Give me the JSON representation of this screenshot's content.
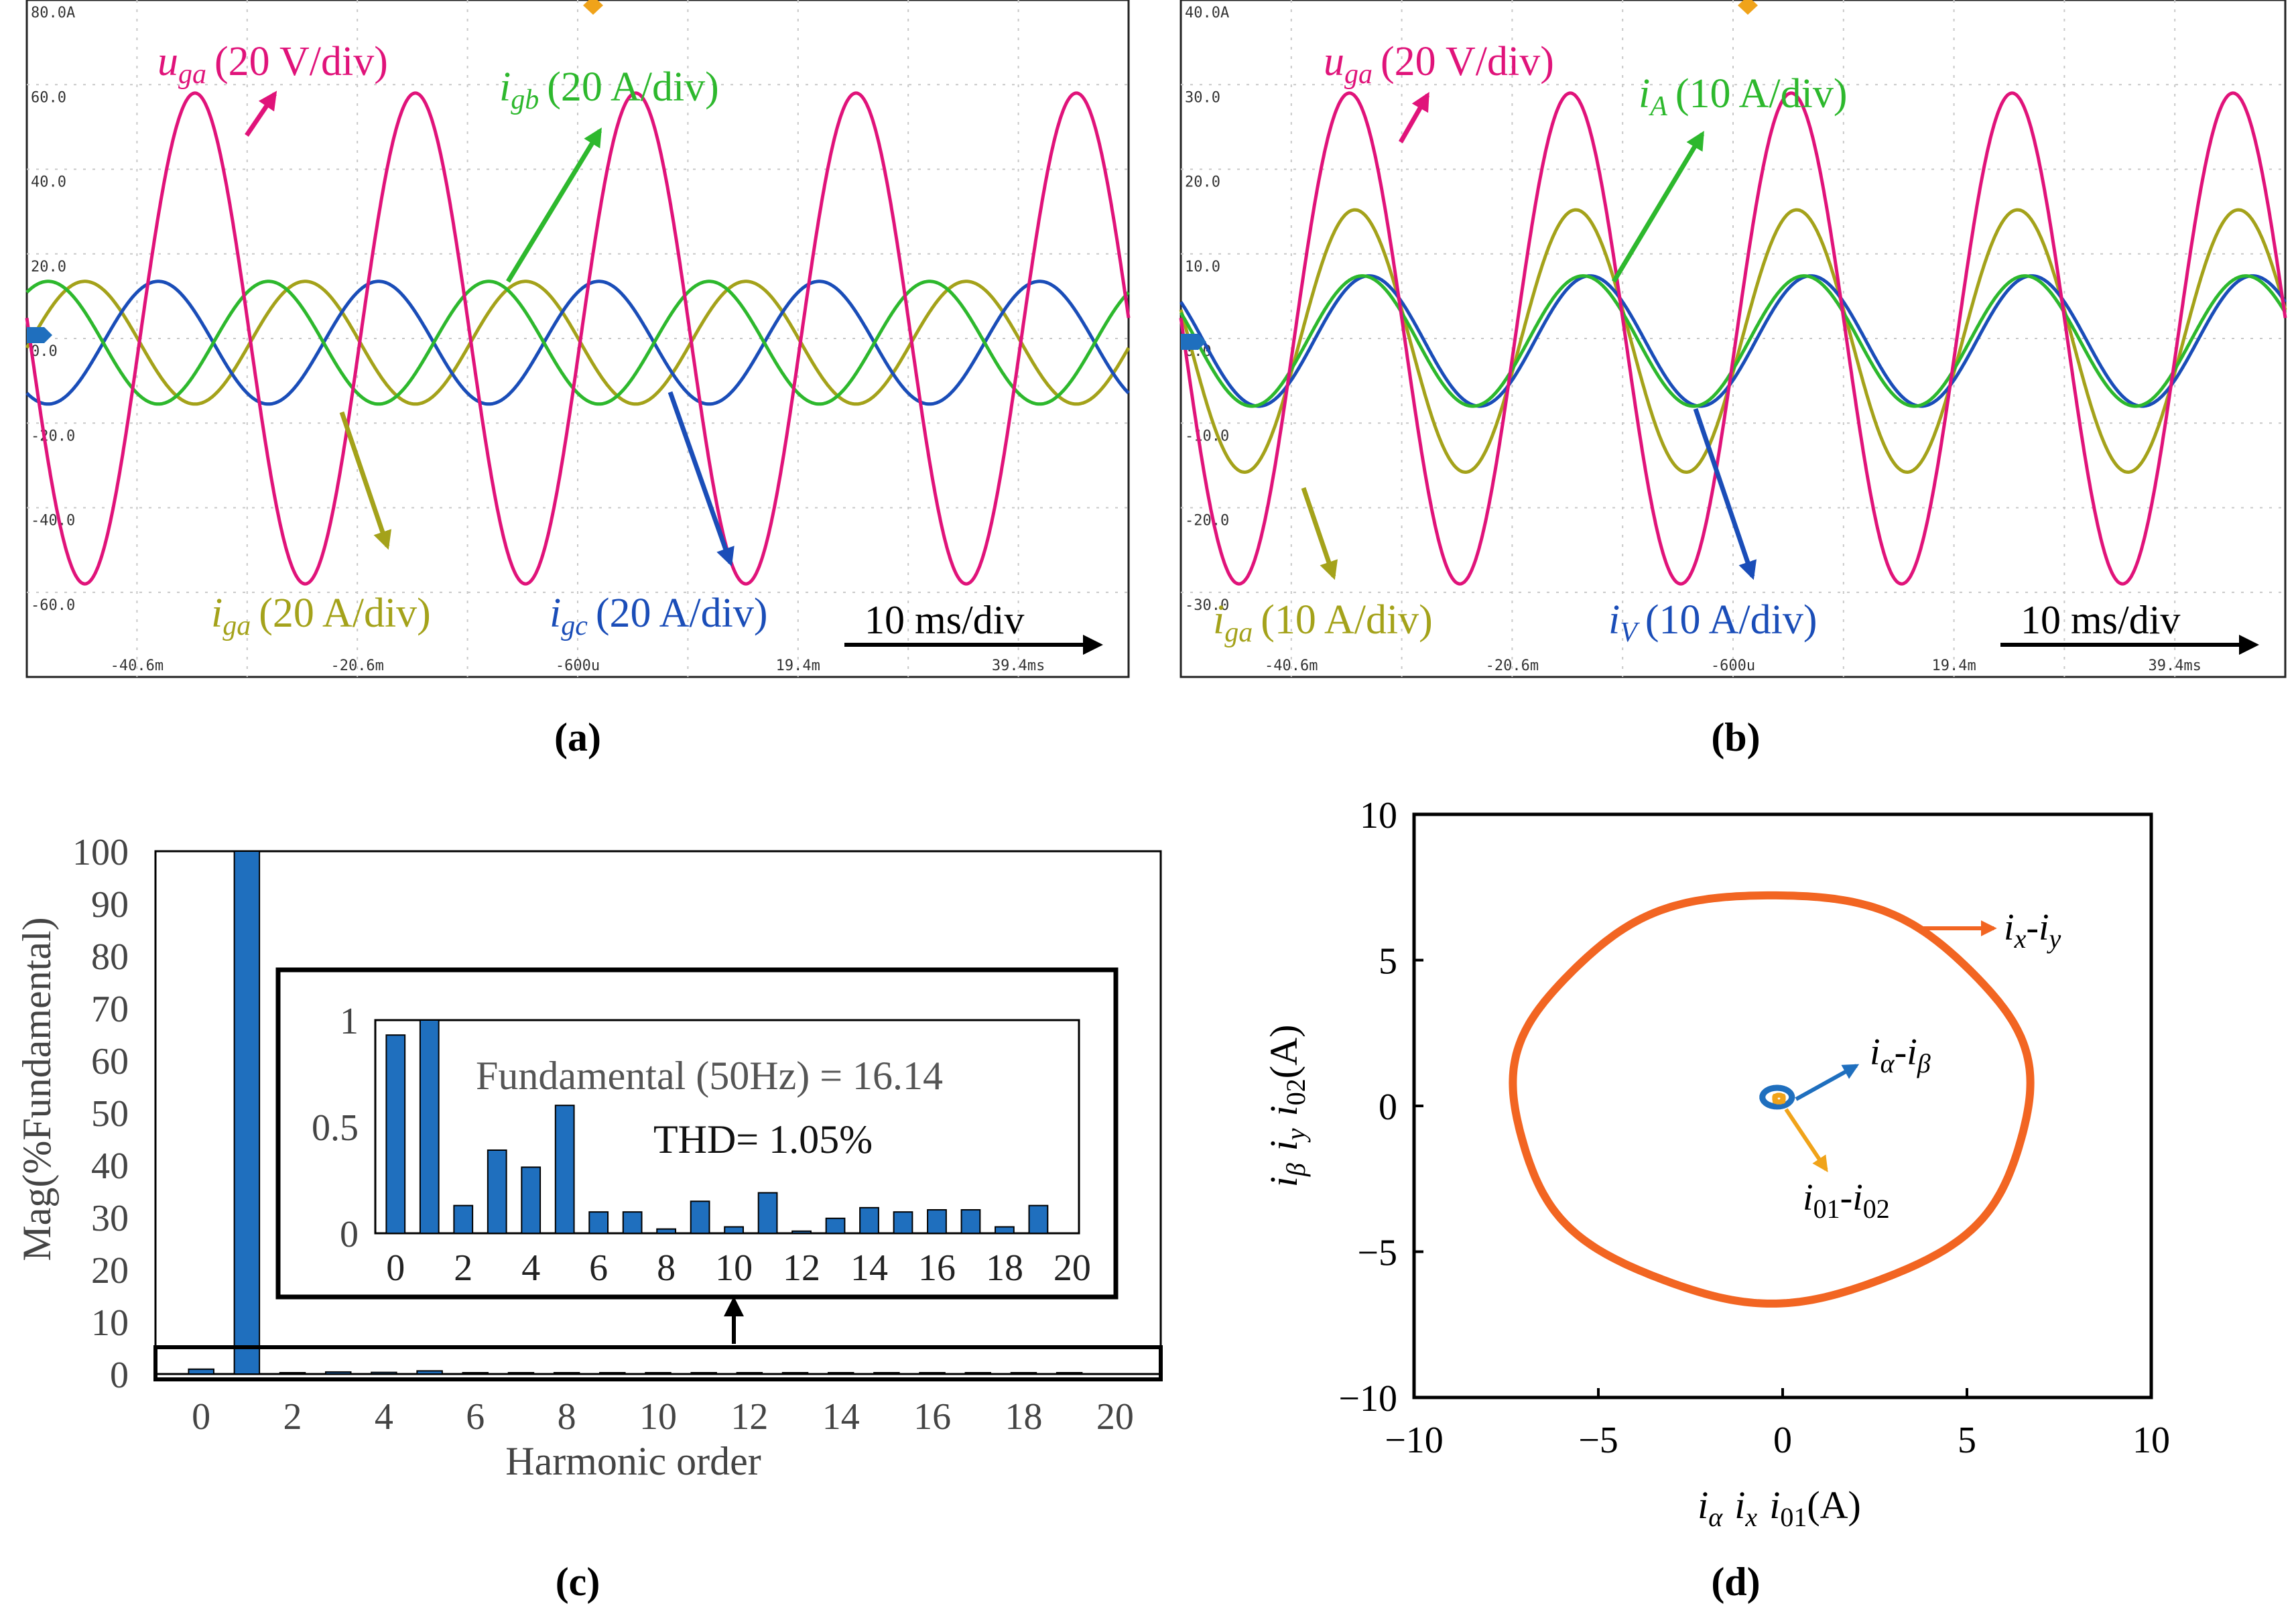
{
  "chart_data": [
    {
      "panel": "a",
      "type": "line",
      "label": "(a)",
      "time_scale": "10 ms/div",
      "y_scale_labels": [
        "80.0A",
        "60.0",
        "40.0",
        "20.0",
        "0.0",
        "-20.0",
        "-40.0",
        "-60.0"
      ],
      "x_scale_labels": [
        "-40.6m",
        "-20.6m",
        "-600u",
        "19.4m",
        "39.4ms"
      ],
      "x_ticks_ms": [
        -40.6,
        -20.6,
        -0.6,
        19.4,
        39.4
      ],
      "xlim_ms": [
        -50.6,
        49.4
      ],
      "ylim": [
        -80,
        80
      ],
      "series": [
        {
          "name": "u_ga",
          "label_base": "u",
          "label_sub": "ga",
          "label_unit": "(20 V/div)",
          "color": "#e0137a",
          "amplitude": 58,
          "freq_hz": 50,
          "phase_deg": 6,
          "dc": 0
        },
        {
          "name": "i_gb",
          "label_base": "i",
          "label_sub": "gb",
          "label_unit": "(20 A/div)",
          "color": "#2db82d",
          "amplitude": 14.5,
          "freq_hz": 50,
          "phase_deg": -114,
          "dc": -1
        },
        {
          "name": "i_ga",
          "label_base": "i",
          "label_sub": "ga",
          "label_unit": "(20 A/div)",
          "color": "#a4a21a",
          "amplitude": 14.5,
          "freq_hz": 50,
          "phase_deg": 186,
          "dc": -1
        },
        {
          "name": "i_gc",
          "label_base": "i",
          "label_sub": "gc",
          "label_unit": "(20 A/div)",
          "color": "#1a4db8",
          "amplitude": 14.5,
          "freq_hz": 50,
          "phase_deg": 66,
          "dc": -1
        }
      ]
    },
    {
      "panel": "b",
      "type": "line",
      "label": "(b)",
      "time_scale": "10 ms/div",
      "y_scale_labels": [
        "40.0A",
        "30.0",
        "20.0",
        "10.0",
        "0.0",
        "-10.0",
        "-20.0",
        "-30.0"
      ],
      "x_scale_labels": [
        "-40.6m",
        "-20.6m",
        "-600u",
        "19.4m",
        "39.4ms"
      ],
      "x_ticks_ms": [
        -40.6,
        -20.6,
        -0.6,
        19.4,
        39.4
      ],
      "xlim_ms": [
        -50.6,
        49.4
      ],
      "ylim": [
        -40,
        40
      ],
      "series": [
        {
          "name": "u_ga",
          "label_base": "u",
          "label_sub": "ga",
          "label_unit": "(20 V/div)",
          "color": "#e0137a",
          "amplitude": 29,
          "freq_hz": 50,
          "phase_deg": 6,
          "dc": 0
        },
        {
          "name": "i_A",
          "label_base": "i",
          "label_sub": "A",
          "label_unit": "(10 A/div)",
          "color": "#2db82d",
          "amplitude": 7.7,
          "freq_hz": 50,
          "phase_deg": -15,
          "dc": -0.3
        },
        {
          "name": "i_ga",
          "label_base": "i",
          "label_sub": "ga",
          "label_unit": "(10 A/div)",
          "color": "#a4a21a",
          "amplitude": 15.5,
          "freq_hz": 50,
          "phase_deg": -3,
          "dc": -0.3
        },
        {
          "name": "i_V",
          "label_base": "i",
          "label_sub": "V",
          "label_unit": "(10 A/div)",
          "color": "#1a4db8",
          "amplitude": 7.7,
          "freq_hz": 50,
          "phase_deg": -26,
          "dc": -0.3
        }
      ]
    },
    {
      "panel": "c",
      "type": "bar",
      "label": "(c)",
      "xlabel": "Harmonic order",
      "ylabel": "Mag(%Fundamental)",
      "ylim": [
        0,
        100
      ],
      "yticks": [
        0,
        10,
        20,
        30,
        40,
        50,
        60,
        70,
        80,
        90,
        100
      ],
      "xticks": [
        0,
        2,
        4,
        6,
        8,
        10,
        12,
        14,
        16,
        18,
        20
      ],
      "categories": [
        0,
        1,
        2,
        3,
        4,
        5,
        6,
        7,
        8,
        9,
        10,
        11,
        12,
        13,
        14,
        15,
        16,
        17,
        18,
        19
      ],
      "values": [
        0.93,
        100,
        0.13,
        0.39,
        0.31,
        0.6,
        0.1,
        0.1,
        0.02,
        0.15,
        0.03,
        0.19,
        0.01,
        0.07,
        0.12,
        0.1,
        0.11,
        0.11,
        0.03,
        0.13
      ],
      "bar_color": "#1f6fbe",
      "inset": {
        "ylim": [
          0,
          1
        ],
        "ytick_labels": [
          "0",
          "0.5",
          "1"
        ],
        "yticks": [
          0,
          0.5,
          1
        ],
        "xticks": [
          0,
          2,
          4,
          6,
          8,
          10,
          12,
          14,
          16,
          18,
          20
        ],
        "fundamental_text": "Fundamental (50Hz) = 16.14",
        "thd_text": "THD= 1.05%"
      }
    },
    {
      "panel": "d",
      "type": "scatter",
      "label": "(d)",
      "xlim": [
        -10,
        10
      ],
      "ylim": [
        -10,
        10
      ],
      "xticks": [
        -10,
        -5,
        0,
        5,
        10
      ],
      "yticks": [
        -10,
        -5,
        0,
        5,
        10
      ],
      "tick_labels": [
        "−10",
        "−5",
        "0",
        "5",
        "10"
      ],
      "xlabel_parts": [
        {
          "t": "i",
          "s": "α"
        },
        {
          "t": "i",
          "s": "x"
        },
        {
          "t": "i",
          "s": "01"
        }
      ],
      "ylabel_parts": [
        {
          "t": "i",
          "s": "β"
        },
        {
          "t": "i",
          "s": "y"
        },
        {
          "t": "i",
          "s": "02"
        }
      ],
      "unit": "(A)",
      "series": [
        {
          "name": "ix-iy",
          "base1": "i",
          "sub1": "x",
          "base2": "i",
          "sub2": "y",
          "color": "#f26522",
          "center": [
            -0.3,
            0.3
          ],
          "radii": [
            7.0,
            7.0
          ]
        },
        {
          "name": "ialpha-ibeta",
          "base1": "i",
          "sub1": "α",
          "base2": "i",
          "sub2": "β",
          "color": "#1f6fbe",
          "center": [
            -0.15,
            0.3
          ],
          "radii": [
            0.4,
            0.32
          ]
        },
        {
          "name": "i01-i02",
          "base1": "i",
          "sub1": "01",
          "base2": "i",
          "sub2": "02",
          "color": "#f0a31a",
          "center": [
            -0.1,
            0.25
          ],
          "radii": [
            0.12,
            0.12
          ]
        }
      ]
    }
  ]
}
